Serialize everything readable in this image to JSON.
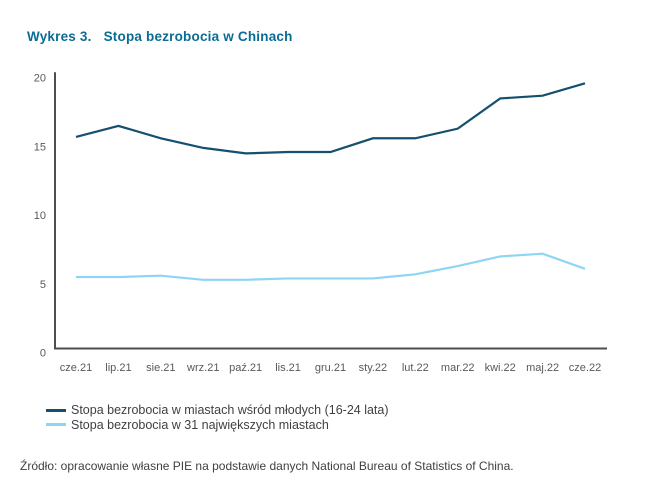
{
  "title": {
    "label": "Wykres 3.",
    "text": "Stopa bezrobocia w Chinach",
    "color": "#0a6c94"
  },
  "chart_data": {
    "type": "line",
    "title": "Stopa bezrobocia w Chinach",
    "categories": [
      "cze.21",
      "lip.21",
      "sie.21",
      "wrz.21",
      "paź.21",
      "lis.21",
      "gru.21",
      "sty.22",
      "lut.22",
      "mar.22",
      "kwi.22",
      "maj.22",
      "cze.22"
    ],
    "series": [
      {
        "name": "Stopa bezrobocia w miastach wśród młodych (16-24 lata)",
        "color": "#15506e",
        "values": [
          15.4,
          16.2,
          15.3,
          14.6,
          14.2,
          14.3,
          14.3,
          15.3,
          15.3,
          16.0,
          18.2,
          18.4,
          19.3
        ]
      },
      {
        "name": "Stopa bezrobocia w 31 największych miastach",
        "color": "#8ed5f3",
        "values": [
          5.2,
          5.2,
          5.3,
          5.0,
          5.0,
          5.1,
          5.1,
          5.1,
          5.4,
          6.0,
          6.7,
          6.9,
          5.8
        ]
      }
    ],
    "xlabel": "",
    "ylabel": "",
    "ylim": [
      0,
      20
    ],
    "yticks": [
      0,
      5,
      10,
      15,
      20
    ],
    "grid": false,
    "legend_position": "bottom-left",
    "axis_color": "#4d4e52",
    "tick_label_color": "#58595b"
  },
  "source": {
    "text": "Źródło: opracowanie własne PIE na podstawie danych National Bureau of Statistics of China."
  }
}
